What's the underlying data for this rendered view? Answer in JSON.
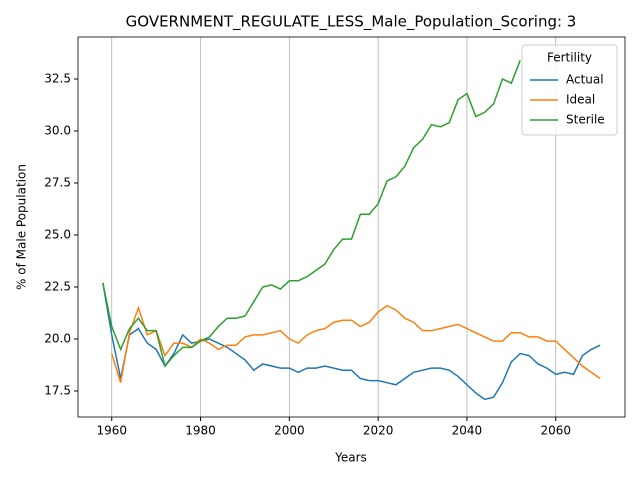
{
  "chart_data": {
    "type": "line",
    "title": "GOVERNMENT_REGULATE_LESS_Male_Population_Scoring: 3",
    "xlabel": "Years",
    "ylabel": "% of Male Population",
    "x": [
      1958,
      1960,
      1962,
      1964,
      1966,
      1968,
      1970,
      1972,
      1974,
      1976,
      1978,
      1980,
      1982,
      1984,
      1986,
      1988,
      1990,
      1992,
      1994,
      1996,
      1998,
      2000,
      2002,
      2004,
      2006,
      2008,
      2010,
      2012,
      2014,
      2016,
      2018,
      2020,
      2022,
      2024,
      2026,
      2028,
      2030,
      2032,
      2034,
      2036,
      2038,
      2040,
      2042,
      2044,
      2046,
      2048,
      2050,
      2052,
      2054,
      2056,
      2058,
      2060,
      2062,
      2064,
      2066,
      2068,
      2070
    ],
    "series": [
      {
        "name": "Actual",
        "color": "#1f77b4",
        "values": [
          22.7,
          20.2,
          18.1,
          20.2,
          20.5,
          19.8,
          19.5,
          18.7,
          19.3,
          20.2,
          19.8,
          19.9,
          20.0,
          19.8,
          19.6,
          19.3,
          19.0,
          18.5,
          18.8,
          18.7,
          18.6,
          18.6,
          18.4,
          18.6,
          18.6,
          18.7,
          18.6,
          18.5,
          18.5,
          18.1,
          18.0,
          18.0,
          17.9,
          17.8,
          18.1,
          18.4,
          18.5,
          18.6,
          18.6,
          18.5,
          18.2,
          17.8,
          17.4,
          17.1,
          17.2,
          17.9,
          18.9,
          19.3,
          19.2,
          18.8,
          18.6,
          18.3,
          18.4,
          18.3,
          19.2,
          19.5,
          19.7
        ]
      },
      {
        "name": "Ideal",
        "color": "#ff7f0e",
        "values": [
          null,
          19.3,
          17.9,
          20.3,
          21.5,
          20.2,
          20.4,
          19.2,
          19.8,
          19.8,
          19.6,
          20.0,
          19.8,
          19.5,
          19.7,
          19.7,
          20.1,
          20.2,
          20.2,
          20.3,
          20.4,
          20.0,
          19.8,
          20.2,
          20.4,
          20.5,
          20.8,
          20.9,
          20.9,
          20.6,
          20.8,
          21.3,
          21.6,
          21.4,
          21.0,
          20.8,
          20.4,
          20.4,
          20.5,
          20.6,
          20.7,
          20.5,
          20.3,
          20.1,
          19.9,
          19.9,
          20.3,
          20.3,
          20.1,
          20.1,
          19.9,
          19.9,
          19.5,
          19.1,
          18.7,
          18.4,
          18.1
        ]
      },
      {
        "name": "Sterile",
        "color": "#2ca02c",
        "values": [
          22.7,
          20.6,
          19.5,
          20.5,
          21.0,
          20.4,
          20.4,
          18.7,
          19.2,
          19.6,
          19.6,
          19.9,
          20.1,
          20.6,
          21.0,
          21.0,
          21.1,
          21.8,
          22.5,
          22.6,
          22.4,
          22.8,
          22.8,
          23.0,
          23.3,
          23.6,
          24.3,
          24.8,
          24.8,
          26.0,
          26.0,
          26.5,
          27.6,
          27.8,
          28.3,
          29.2,
          29.6,
          30.3,
          30.2,
          30.4,
          31.5,
          31.8,
          30.7,
          30.9,
          31.3,
          32.5,
          32.3,
          33.4,
          null,
          null,
          null,
          null,
          null,
          null,
          null,
          null,
          null
        ]
      }
    ],
    "xlim": [
      1952.4,
      2075.6
    ],
    "ylim": [
      16.25,
      34.52
    ],
    "xticks": [
      1960,
      1980,
      2000,
      2020,
      2040,
      2060
    ],
    "yticks": [
      17.5,
      {
        "value": 20,
        "label": "20.0"
      },
      22.5,
      {
        "value": 25,
        "label": "25.0"
      },
      27.5,
      {
        "value": 30,
        "label": "30.0"
      },
      32.5
    ],
    "grid": "x",
    "legend_title": "Fertility",
    "legend_loc": "upper right"
  }
}
